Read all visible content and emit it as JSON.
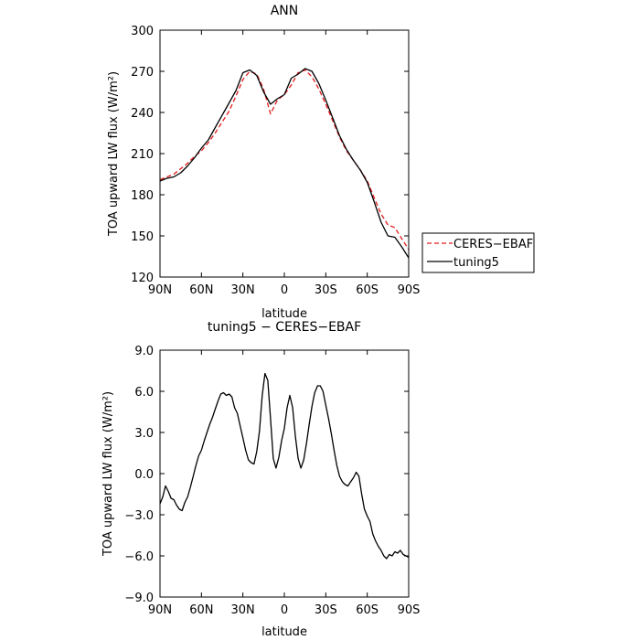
{
  "chart_data": [
    {
      "type": "line",
      "title": "ANN",
      "xlabel": "latitude",
      "ylabel": "TOA upward LW flux (W/m²)",
      "x_direction": "north to south",
      "xlim": [
        90,
        -90
      ],
      "ylim": [
        120,
        300
      ],
      "x_ticks": [
        {
          "value": 90,
          "label": "90N"
        },
        {
          "value": 60,
          "label": "60N"
        },
        {
          "value": 30,
          "label": "30N"
        },
        {
          "value": 0,
          "label": "0"
        },
        {
          "value": -30,
          "label": "30S"
        },
        {
          "value": -60,
          "label": "60S"
        },
        {
          "value": -90,
          "label": "90S"
        }
      ],
      "y_ticks": [
        {
          "value": 120,
          "label": "120"
        },
        {
          "value": 150,
          "label": "150"
        },
        {
          "value": 180,
          "label": "180"
        },
        {
          "value": 210,
          "label": "210"
        },
        {
          "value": 240,
          "label": "240"
        },
        {
          "value": 270,
          "label": "270"
        },
        {
          "value": 300,
          "label": "300"
        }
      ],
      "grid": false,
      "legend_position": "right, outside plot",
      "series": [
        {
          "name": "CERES−EBAF",
          "color": "#e41a1c",
          "dash": "dashed",
          "x": [
            90,
            85,
            80,
            75,
            70,
            65,
            60,
            55,
            50,
            45,
            40,
            35,
            30,
            25,
            20,
            15,
            10,
            5,
            0,
            -5,
            -10,
            -15,
            -20,
            -25,
            -30,
            -35,
            -40,
            -45,
            -50,
            -55,
            -60,
            -65,
            -70,
            -75,
            -80,
            -85,
            -90
          ],
          "y": [
            191,
            193,
            195,
            199,
            203,
            208,
            212,
            218,
            225,
            233,
            241,
            252,
            264,
            270,
            268,
            257,
            239,
            249,
            253,
            260,
            269,
            271,
            266,
            257,
            246,
            234,
            222,
            212,
            205,
            198,
            190,
            178,
            166,
            158,
            156,
            148,
            140
          ]
        },
        {
          "name": "tuning5",
          "color": "#000000",
          "dash": "solid",
          "x": [
            90,
            85,
            80,
            75,
            70,
            65,
            60,
            55,
            50,
            45,
            40,
            35,
            30,
            25,
            20,
            15,
            10,
            5,
            0,
            -5,
            -10,
            -15,
            -20,
            -25,
            -30,
            -35,
            -40,
            -45,
            -50,
            -55,
            -60,
            -65,
            -70,
            -75,
            -80,
            -85,
            -90
          ],
          "y": [
            190,
            192,
            193,
            196,
            201,
            207,
            214,
            220,
            229,
            238,
            247,
            256,
            269,
            271,
            267,
            255,
            246,
            250,
            253,
            265,
            268,
            272,
            270,
            261,
            249,
            236,
            223,
            213,
            205,
            198,
            189,
            175,
            160,
            150,
            149,
            142,
            134
          ]
        }
      ]
    },
    {
      "type": "line",
      "title": "tuning5 − CERES−EBAF",
      "xlabel": "latitude",
      "ylabel": "TOA upward LW flux (W/m²)",
      "x_direction": "north to south",
      "xlim": [
        90,
        -90
      ],
      "ylim": [
        -9,
        9
      ],
      "x_ticks": [
        {
          "value": 90,
          "label": "90N"
        },
        {
          "value": 60,
          "label": "60N"
        },
        {
          "value": 30,
          "label": "30N"
        },
        {
          "value": 0,
          "label": "0"
        },
        {
          "value": -30,
          "label": "30S"
        },
        {
          "value": -60,
          "label": "60S"
        },
        {
          "value": -90,
          "label": "90S"
        }
      ],
      "y_ticks": [
        {
          "value": -9,
          "label": "−9.0"
        },
        {
          "value": -6,
          "label": "−6.0"
        },
        {
          "value": -3,
          "label": "−3.0"
        },
        {
          "value": 0,
          "label": "0.0"
        },
        {
          "value": 3,
          "label": "3.0"
        },
        {
          "value": 6,
          "label": "6.0"
        },
        {
          "value": 9,
          "label": "9.0"
        }
      ],
      "grid": false,
      "series": [
        {
          "color": "#000000",
          "dash": "solid",
          "x": [
            90,
            88,
            86,
            84,
            82,
            80,
            78,
            76,
            74,
            72,
            70,
            68,
            66,
            64,
            62,
            60,
            58,
            56,
            54,
            52,
            50,
            48,
            46,
            44,
            42,
            40,
            38,
            36,
            34,
            32,
            30,
            28,
            26,
            24,
            22,
            20,
            18,
            16,
            14,
            12,
            10,
            8,
            6,
            4,
            2,
            0,
            -2,
            -4,
            -6,
            -8,
            -10,
            -12,
            -14,
            -16,
            -18,
            -20,
            -22,
            -24,
            -26,
            -28,
            -30,
            -32,
            -34,
            -36,
            -38,
            -40,
            -42,
            -44,
            -46,
            -48,
            -50,
            -52,
            -54,
            -56,
            -58,
            -60,
            -62,
            -64,
            -66,
            -68,
            -70,
            -72,
            -74,
            -76,
            -78,
            -80,
            -82,
            -84,
            -86,
            -88,
            -90
          ],
          "y": [
            -2.2,
            -1.7,
            -0.9,
            -1.3,
            -1.8,
            -1.9,
            -2.3,
            -2.6,
            -2.7,
            -2.1,
            -1.7,
            -1.0,
            -0.2,
            0.6,
            1.3,
            1.7,
            2.4,
            3.0,
            3.6,
            4.1,
            4.7,
            5.3,
            5.8,
            5.9,
            5.7,
            5.8,
            5.6,
            4.8,
            4.4,
            3.5,
            2.6,
            1.7,
            1.0,
            0.8,
            0.7,
            1.6,
            3.1,
            5.7,
            7.3,
            6.8,
            4.0,
            1.1,
            0.4,
            1.2,
            2.4,
            3.3,
            4.8,
            5.7,
            4.8,
            2.7,
            1.1,
            0.4,
            1.0,
            2.2,
            3.6,
            4.9,
            5.9,
            6.4,
            6.4,
            6.0,
            5.0,
            4.0,
            2.9,
            1.7,
            0.6,
            -0.2,
            -0.6,
            -0.8,
            -0.9,
            -0.6,
            -0.3,
            0.1,
            -0.2,
            -1.5,
            -2.6,
            -3.1,
            -3.5,
            -4.4,
            -4.9,
            -5.3,
            -5.6,
            -6.0,
            -6.2,
            -5.9,
            -6.0,
            -5.7,
            -5.8,
            -5.6,
            -5.9,
            -6.0,
            -6.1
          ]
        }
      ]
    }
  ]
}
